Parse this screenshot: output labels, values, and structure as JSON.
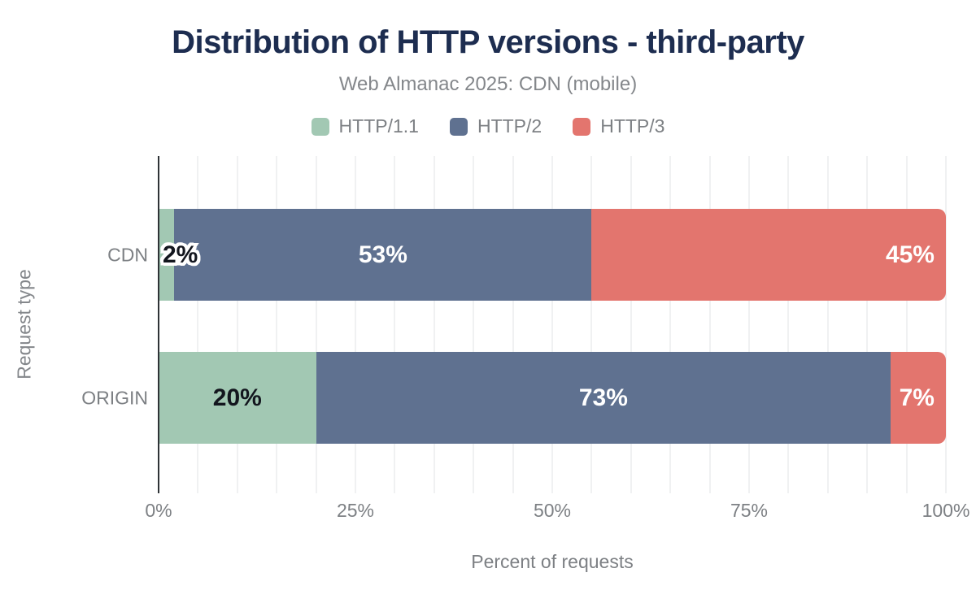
{
  "header": {
    "title": "Distribution of HTTP versions - third-party",
    "subtitle": "Web Almanac 2025: CDN (mobile)"
  },
  "chart_data": {
    "type": "bar",
    "orientation": "horizontal",
    "stacked": true,
    "categories": [
      "CDN",
      "ORIGIN"
    ],
    "series": [
      {
        "name": "HTTP/1.1",
        "color": "#a2c8b3",
        "values": [
          2,
          20
        ]
      },
      {
        "name": "HTTP/2",
        "color": "#5f7190",
        "values": [
          53,
          73
        ]
      },
      {
        "name": "HTTP/3",
        "color": "#e3756e",
        "values": [
          45,
          7
        ]
      }
    ],
    "value_labels": [
      [
        "2%",
        "53%",
        "45%"
      ],
      [
        "20%",
        "73%",
        "7%"
      ]
    ],
    "xlabel": "Percent of requests",
    "ylabel": "Request type",
    "xlim": [
      0,
      100
    ],
    "x_ticks": [
      {
        "value": 0,
        "label": "0%"
      },
      {
        "value": 25,
        "label": "25%"
      },
      {
        "value": 50,
        "label": "50%"
      },
      {
        "value": 75,
        "label": "75%"
      },
      {
        "value": 100,
        "label": "100%"
      }
    ],
    "grid": {
      "vertical_minor_step_percent": 5,
      "color": "#f0f1f2"
    },
    "legend_position": "top"
  },
  "colors": {
    "title": "#1d2d50",
    "muted_text": "#7d8084",
    "axis_line": "#2f3337",
    "label_on_light": "#13161e",
    "label_on_dark": "#ffffff"
  }
}
